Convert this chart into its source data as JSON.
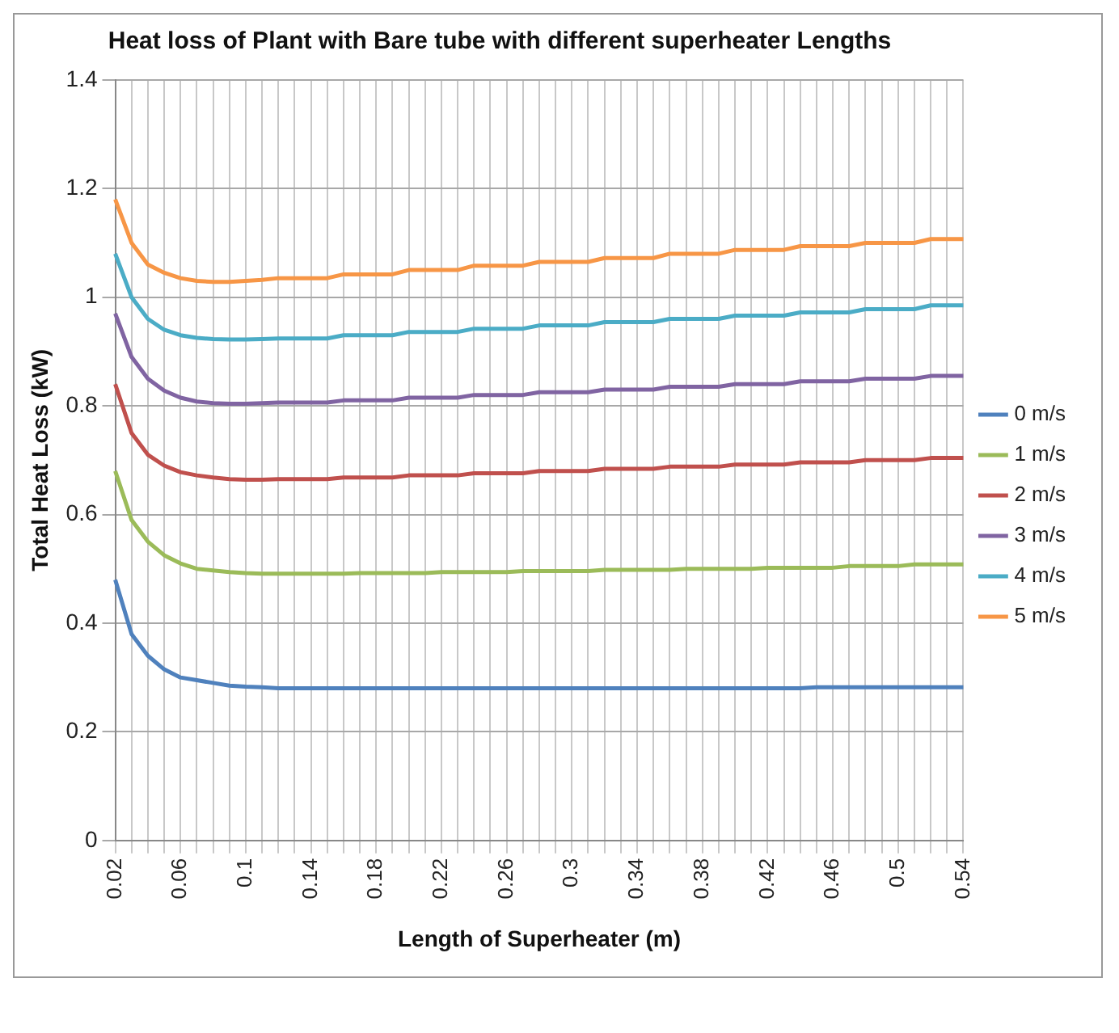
{
  "chart_data": {
    "type": "line",
    "title": "Heat loss of Plant with Bare tube with different superheater Lengths",
    "xlabel": "Length of Superheater (m)",
    "ylabel": "Total Heat Loss (kW)",
    "categories": [
      "0.02",
      null,
      null,
      null,
      "0.06",
      null,
      null,
      null,
      "0.1",
      null,
      null,
      null,
      "0.14",
      null,
      null,
      null,
      "0.18",
      null,
      null,
      null,
      "0.22",
      null,
      null,
      null,
      "0.26",
      null,
      null,
      null,
      "0.3",
      null,
      null,
      null,
      "0.34",
      null,
      null,
      null,
      "0.38",
      null,
      null,
      null,
      "0.42",
      null,
      null,
      null,
      "0.46",
      null,
      null,
      null,
      "0.5",
      null,
      null,
      null,
      "0.54"
    ],
    "ylim": [
      0,
      1.4
    ],
    "yticks": [
      0,
      0.2,
      0.4,
      0.6,
      0.8,
      1,
      1.2,
      1.4
    ],
    "grid": true,
    "legend": "right",
    "marker": "none",
    "line_style": "solid",
    "series": [
      {
        "name": "0 m/s",
        "color": "#4f81bd",
        "values": [
          0.48,
          0.38,
          0.34,
          0.315,
          0.3,
          0.295,
          0.29,
          0.285,
          0.283,
          0.282,
          0.28,
          0.28,
          0.28,
          0.28,
          0.28,
          0.28,
          0.28,
          0.28,
          0.28,
          0.28,
          0.28,
          0.28,
          0.28,
          0.28,
          0.28,
          0.28,
          0.28,
          0.28,
          0.28,
          0.28,
          0.28,
          0.28,
          0.28,
          0.28,
          0.28,
          0.28,
          0.28,
          0.28,
          0.28,
          0.28,
          0.28,
          0.28,
          0.28,
          0.282,
          0.282,
          0.282,
          0.282,
          0.282,
          0.282,
          0.282,
          0.282,
          0.282,
          0.282
        ]
      },
      {
        "name": "1 m/s",
        "color": "#9bbb59",
        "values": [
          0.68,
          0.59,
          0.55,
          0.525,
          0.51,
          0.5,
          0.497,
          0.494,
          0.492,
          0.491,
          0.491,
          0.491,
          0.491,
          0.491,
          0.491,
          0.492,
          0.492,
          0.492,
          0.492,
          0.492,
          0.494,
          0.494,
          0.494,
          0.494,
          0.494,
          0.496,
          0.496,
          0.496,
          0.496,
          0.496,
          0.498,
          0.498,
          0.498,
          0.498,
          0.498,
          0.5,
          0.5,
          0.5,
          0.5,
          0.5,
          0.502,
          0.502,
          0.502,
          0.502,
          0.502,
          0.505,
          0.505,
          0.505,
          0.505,
          0.508,
          0.508,
          0.508,
          0.508
        ]
      },
      {
        "name": "2 m/s",
        "color": "#c0504d",
        "values": [
          0.84,
          0.75,
          0.71,
          0.69,
          0.678,
          0.672,
          0.668,
          0.665,
          0.664,
          0.664,
          0.665,
          0.665,
          0.665,
          0.665,
          0.668,
          0.668,
          0.668,
          0.668,
          0.672,
          0.672,
          0.672,
          0.672,
          0.676,
          0.676,
          0.676,
          0.676,
          0.68,
          0.68,
          0.68,
          0.68,
          0.684,
          0.684,
          0.684,
          0.684,
          0.688,
          0.688,
          0.688,
          0.688,
          0.692,
          0.692,
          0.692,
          0.692,
          0.696,
          0.696,
          0.696,
          0.696,
          0.7,
          0.7,
          0.7,
          0.7,
          0.704,
          0.704,
          0.704
        ]
      },
      {
        "name": "3 m/s",
        "color": "#8064a2",
        "values": [
          0.97,
          0.89,
          0.85,
          0.828,
          0.815,
          0.808,
          0.805,
          0.804,
          0.804,
          0.805,
          0.806,
          0.806,
          0.806,
          0.806,
          0.81,
          0.81,
          0.81,
          0.81,
          0.815,
          0.815,
          0.815,
          0.815,
          0.82,
          0.82,
          0.82,
          0.82,
          0.825,
          0.825,
          0.825,
          0.825,
          0.83,
          0.83,
          0.83,
          0.83,
          0.835,
          0.835,
          0.835,
          0.835,
          0.84,
          0.84,
          0.84,
          0.84,
          0.845,
          0.845,
          0.845,
          0.845,
          0.85,
          0.85,
          0.85,
          0.85,
          0.855,
          0.855,
          0.855
        ]
      },
      {
        "name": "4 m/s",
        "color": "#4bacc6",
        "values": [
          1.08,
          1.0,
          0.96,
          0.94,
          0.93,
          0.925,
          0.923,
          0.922,
          0.922,
          0.923,
          0.924,
          0.924,
          0.924,
          0.924,
          0.93,
          0.93,
          0.93,
          0.93,
          0.936,
          0.936,
          0.936,
          0.936,
          0.942,
          0.942,
          0.942,
          0.942,
          0.948,
          0.948,
          0.948,
          0.948,
          0.954,
          0.954,
          0.954,
          0.954,
          0.96,
          0.96,
          0.96,
          0.96,
          0.966,
          0.966,
          0.966,
          0.966,
          0.972,
          0.972,
          0.972,
          0.972,
          0.978,
          0.978,
          0.978,
          0.978,
          0.985,
          0.985,
          0.985
        ]
      },
      {
        "name": "5 m/s",
        "color": "#f79646",
        "values": [
          1.18,
          1.1,
          1.06,
          1.045,
          1.035,
          1.03,
          1.028,
          1.028,
          1.03,
          1.032,
          1.035,
          1.035,
          1.035,
          1.035,
          1.042,
          1.042,
          1.042,
          1.042,
          1.05,
          1.05,
          1.05,
          1.05,
          1.058,
          1.058,
          1.058,
          1.058,
          1.065,
          1.065,
          1.065,
          1.065,
          1.072,
          1.072,
          1.072,
          1.072,
          1.08,
          1.08,
          1.08,
          1.08,
          1.087,
          1.087,
          1.087,
          1.087,
          1.094,
          1.094,
          1.094,
          1.094,
          1.1,
          1.1,
          1.1,
          1.1,
          1.107,
          1.107,
          1.107
        ]
      }
    ]
  }
}
